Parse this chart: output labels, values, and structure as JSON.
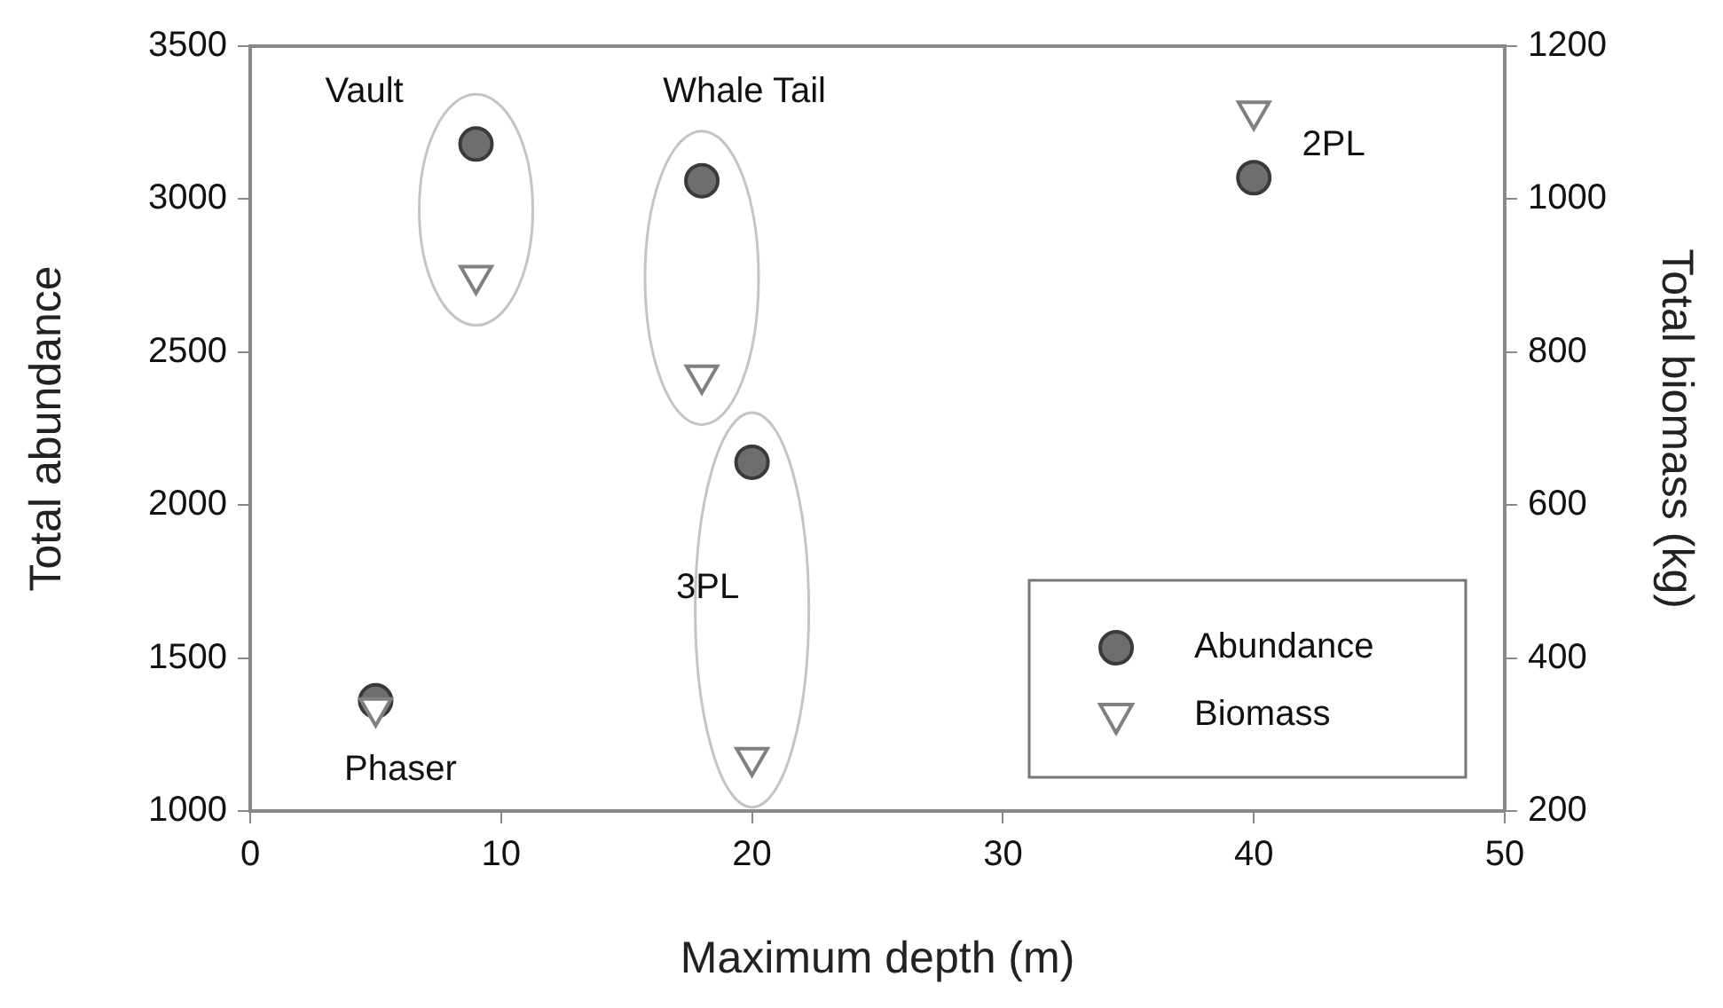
{
  "chart_data": {
    "type": "scatter",
    "xlabel": "Maximum depth (m)",
    "ylabel": "Total abundance",
    "y2label": "Total biomass (kg)",
    "series": [
      {
        "name": "Abundance",
        "color": "#6e6e6e",
        "marker": "circle",
        "x": [
          9,
          18,
          20,
          5,
          40
        ],
        "values": [
          3180,
          3060,
          2140,
          1360,
          3070
        ]
      },
      {
        "name": "Biomass",
        "color": "#808080",
        "marker": "triangle",
        "axis": "y2",
        "x": [
          9,
          18,
          20,
          5,
          40
        ],
        "values": [
          900,
          770,
          270,
          335,
          1115
        ]
      }
    ],
    "xlim": [
      0,
      50
    ],
    "xticks": [
      0,
      10,
      20,
      30,
      40,
      50
    ],
    "ylim": [
      1000,
      3500
    ],
    "yticks": [
      1000,
      1500,
      2000,
      2500,
      3000,
      3500
    ],
    "y2lim": [
      200,
      1200
    ],
    "y2ticks": [
      200,
      400,
      600,
      800,
      1000,
      1200
    ],
    "annotations": [
      {
        "text": "Vault",
        "x": 9,
        "y": 3180
      },
      {
        "text": "Whale Tail",
        "x": 18,
        "y": 3060
      },
      {
        "text": "3PL",
        "x": 20,
        "y": 2140
      },
      {
        "text": "Phaser",
        "x": 5,
        "y": 1360
      },
      {
        "text": "2PL",
        "x": 40,
        "y": 3070
      }
    ],
    "legend": "bottom right",
    "grid": false
  }
}
